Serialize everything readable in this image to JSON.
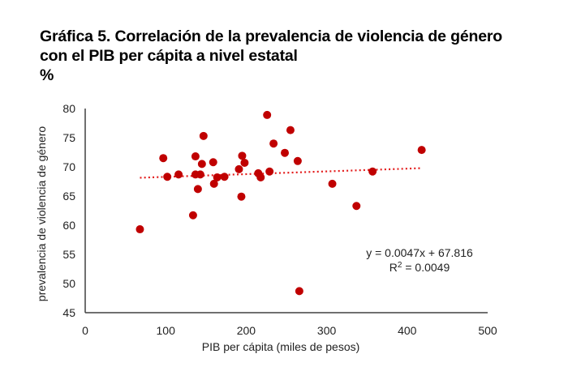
{
  "header": {
    "title_line1": "Gráfica 5. Correlación de la prevalencia de violencia de",
    "title_line2": "género con el PIB per cápita a nivel estatal",
    "unit": "%"
  },
  "chart_data": {
    "type": "scatter",
    "title": "Gráfica 5. Correlación de la prevalencia de violencia de género con el PIB per cápita a nivel estatal",
    "subtitle": "%",
    "xlabel": "PIB per cápita (miles de pesos)",
    "ylabel": "prevalencia de violencia de género",
    "xlim": [
      0,
      500
    ],
    "ylim": [
      45,
      80
    ],
    "xticks": [
      0,
      100,
      200,
      300,
      400,
      500
    ],
    "yticks": [
      45,
      50,
      55,
      60,
      65,
      70,
      75,
      80
    ],
    "grid": false,
    "marker_color": "#C00000",
    "trendline": {
      "type": "linear",
      "slope": 0.0047,
      "intercept": 67.816,
      "x_range": [
        68,
        418
      ],
      "color": "#E31B1B",
      "style": "dotted",
      "equation_label": "y = 0.0047x + 67.816",
      "r2_label_prefix": "R",
      "r2_label_sup": "2",
      "r2_label_value": " = 0.0049"
    },
    "points": [
      {
        "x": 68,
        "y": 59.3
      },
      {
        "x": 97,
        "y": 71.5
      },
      {
        "x": 102,
        "y": 68.3
      },
      {
        "x": 116,
        "y": 68.7
      },
      {
        "x": 134,
        "y": 61.7
      },
      {
        "x": 137,
        "y": 71.8
      },
      {
        "x": 137,
        "y": 68.7
      },
      {
        "x": 143,
        "y": 68.7
      },
      {
        "x": 145,
        "y": 70.5
      },
      {
        "x": 140,
        "y": 66.2
      },
      {
        "x": 147,
        "y": 75.3
      },
      {
        "x": 159,
        "y": 70.8
      },
      {
        "x": 160,
        "y": 67.1
      },
      {
        "x": 164,
        "y": 68.2
      },
      {
        "x": 173,
        "y": 68.3
      },
      {
        "x": 191,
        "y": 69.6
      },
      {
        "x": 195,
        "y": 71.9
      },
      {
        "x": 198,
        "y": 70.7
      },
      {
        "x": 194,
        "y": 64.9
      },
      {
        "x": 215,
        "y": 68.9
      },
      {
        "x": 218,
        "y": 68.2
      },
      {
        "x": 226,
        "y": 78.9
      },
      {
        "x": 229,
        "y": 69.2
      },
      {
        "x": 234,
        "y": 74.0
      },
      {
        "x": 248,
        "y": 72.4
      },
      {
        "x": 255,
        "y": 76.3
      },
      {
        "x": 264,
        "y": 71.0
      },
      {
        "x": 266,
        "y": 48.7
      },
      {
        "x": 307,
        "y": 67.1
      },
      {
        "x": 337,
        "y": 63.3
      },
      {
        "x": 357,
        "y": 69.2
      },
      {
        "x": 418,
        "y": 72.9
      }
    ]
  }
}
